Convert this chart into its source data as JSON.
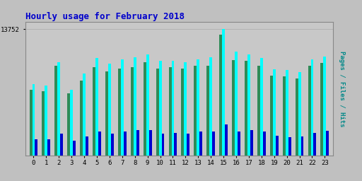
{
  "title": "Hourly usage for February 2018",
  "hours": [
    0,
    1,
    2,
    3,
    4,
    5,
    6,
    7,
    8,
    9,
    10,
    11,
    12,
    13,
    14,
    15,
    16,
    17,
    18,
    19,
    20,
    21,
    22,
    23
  ],
  "pages": [
    7200,
    7000,
    9800,
    6800,
    8200,
    9600,
    9200,
    9500,
    9600,
    10200,
    9500,
    9600,
    9500,
    9800,
    9800,
    13200,
    10400,
    10300,
    9800,
    8700,
    8600,
    8400,
    9800,
    10100
  ],
  "files": [
    7800,
    7600,
    10200,
    7200,
    8900,
    10600,
    10000,
    10500,
    10700,
    11000,
    10300,
    10300,
    10200,
    10500,
    10700,
    13752,
    11300,
    11000,
    10600,
    9400,
    9300,
    9100,
    10500,
    10800
  ],
  "hits": [
    1800,
    1800,
    2400,
    1600,
    2100,
    2600,
    2400,
    2600,
    2800,
    2800,
    2400,
    2500,
    2400,
    2600,
    2600,
    3400,
    2600,
    2800,
    2600,
    2200,
    2000,
    2100,
    2500,
    2700
  ],
  "color_pages": "#2e8b57",
  "color_files": "#00ffff",
  "color_hits": "#0000cd",
  "ymax": 13752,
  "ylabel_right": "Pages / Files / Hits",
  "bg_color": "#c0c0c0",
  "plot_bg": "#c8c8c8",
  "title_color": "#0000cc",
  "ylabel_color": "#008888",
  "bar_width": 0.22
}
